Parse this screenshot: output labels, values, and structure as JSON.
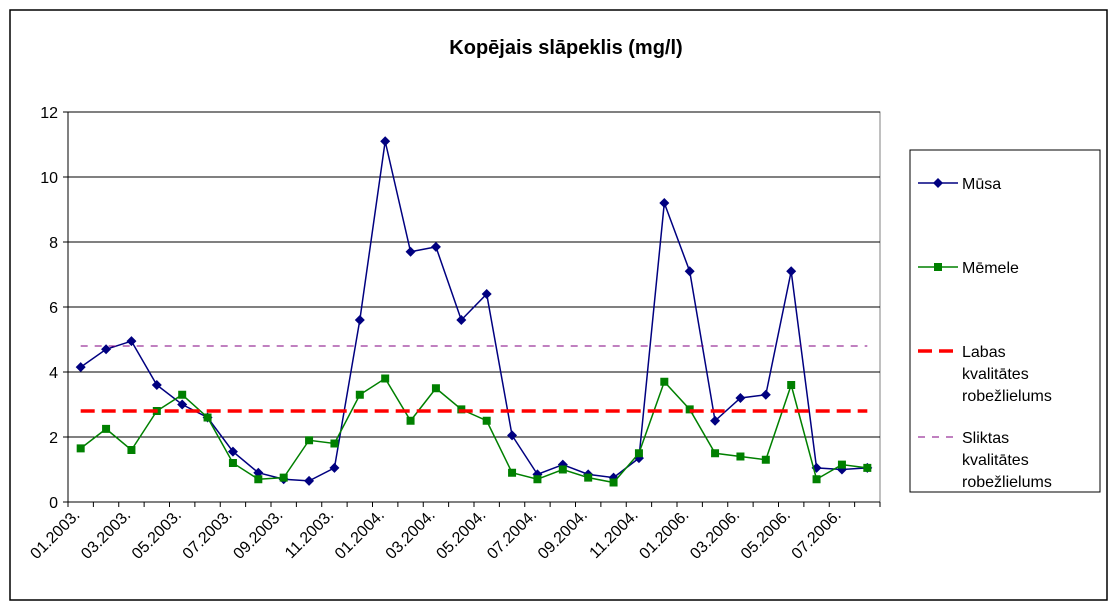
{
  "chart_data": {
    "type": "line",
    "title": "Kopējais slāpeklis (mg/l)",
    "categories": [
      "01.2003.",
      null,
      "03.2003.",
      null,
      "05.2003.",
      null,
      "07.2003.",
      null,
      "09.2003.",
      null,
      "11.2003.",
      null,
      "01.2004.",
      null,
      "03.2004.",
      null,
      "05.2004.",
      null,
      "07.2004.",
      null,
      "09.2004.",
      null,
      "11.2004.",
      null,
      "01.2006.",
      null,
      "03.2006.",
      null,
      "05.2006.",
      null,
      "07.2006.",
      null
    ],
    "series": [
      {
        "name": "Mūsa",
        "color": "#000080",
        "marker": "diamond",
        "dash": "none",
        "width": 1.5,
        "values": [
          4.15,
          4.7,
          4.95,
          3.6,
          3.0,
          2.6,
          1.55,
          0.9,
          0.7,
          0.65,
          1.05,
          5.6,
          11.1,
          7.7,
          7.85,
          5.6,
          6.4,
          2.05,
          0.85,
          1.15,
          0.85,
          0.75,
          1.35,
          9.2,
          7.1,
          2.5,
          3.2,
          3.3,
          7.1,
          1.05,
          1.0,
          1.05
        ]
      },
      {
        "name": "Mēmele",
        "color": "#008000",
        "marker": "square",
        "dash": "none",
        "width": 1.5,
        "values": [
          1.65,
          2.25,
          1.6,
          2.8,
          3.3,
          2.6,
          1.2,
          0.7,
          0.75,
          1.9,
          1.8,
          3.3,
          3.8,
          2.5,
          3.5,
          2.85,
          2.5,
          0.9,
          0.7,
          1.0,
          0.75,
          0.6,
          1.5,
          3.7,
          2.85,
          1.5,
          1.4,
          1.3,
          3.6,
          0.7,
          1.15,
          1.05
        ]
      },
      {
        "name": "Labas kvalitātes robežlielums",
        "color": "#ff0000",
        "marker": "none",
        "dash": "14,7",
        "width": 3.5,
        "values": [
          2.8,
          2.8,
          2.8,
          2.8,
          2.8,
          2.8,
          2.8,
          2.8,
          2.8,
          2.8,
          2.8,
          2.8,
          2.8,
          2.8,
          2.8,
          2.8,
          2.8,
          2.8,
          2.8,
          2.8,
          2.8,
          2.8,
          2.8,
          2.8,
          2.8,
          2.8,
          2.8,
          2.8,
          2.8,
          2.8,
          2.8,
          2.8
        ]
      },
      {
        "name": "Sliktas kvalitātes robežlielums",
        "color": "#800080",
        "marker": "none",
        "dash": "7,7",
        "width": 1,
        "values": [
          4.8,
          4.8,
          4.8,
          4.8,
          4.8,
          4.8,
          4.8,
          4.8,
          4.8,
          4.8,
          4.8,
          4.8,
          4.8,
          4.8,
          4.8,
          4.8,
          4.8,
          4.8,
          4.8,
          4.8,
          4.8,
          4.8,
          4.8,
          4.8,
          4.8,
          4.8,
          4.8,
          4.8,
          4.8,
          4.8,
          4.8,
          4.8
        ]
      }
    ],
    "ylim": [
      0,
      12
    ],
    "yticks": [
      0,
      2,
      4,
      6,
      8,
      10,
      12
    ],
    "grid": true,
    "legend": "right"
  }
}
